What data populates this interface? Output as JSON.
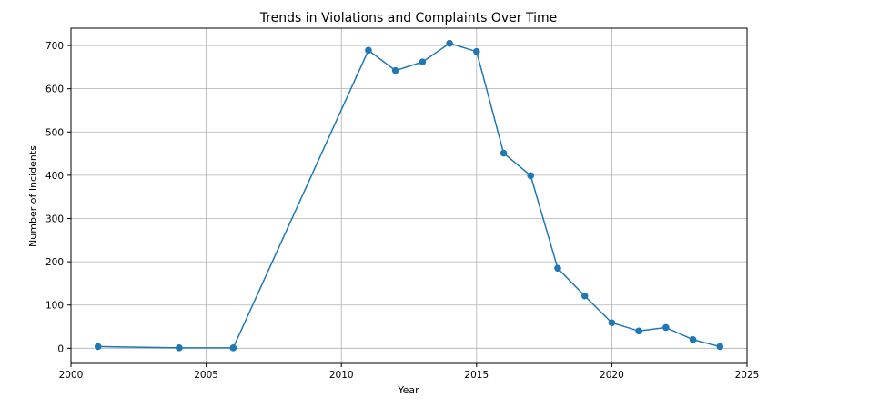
{
  "chart_data": {
    "type": "line",
    "title": "Trends in Violations and Complaints Over Time",
    "xlabel": "Year",
    "ylabel": "Number of Incidents",
    "xlim": [
      2000,
      2025
    ],
    "ylim": [
      -35,
      740
    ],
    "xticks": [
      2000,
      2005,
      2010,
      2015,
      2020,
      2025
    ],
    "yticks": [
      0,
      100,
      200,
      300,
      400,
      500,
      600,
      700
    ],
    "grid": true,
    "colors": {
      "line": "#1f77b4"
    },
    "series": [
      {
        "x": [
          2001,
          2004,
          2006,
          2011,
          2012,
          2013,
          2014,
          2015,
          2016,
          2017,
          2018,
          2019,
          2020,
          2021,
          2022,
          2023,
          2024
        ],
        "y": [
          4,
          1,
          1,
          689,
          642,
          662,
          705,
          686,
          451,
          399,
          185,
          121,
          59,
          40,
          48,
          20,
          4
        ]
      }
    ]
  }
}
